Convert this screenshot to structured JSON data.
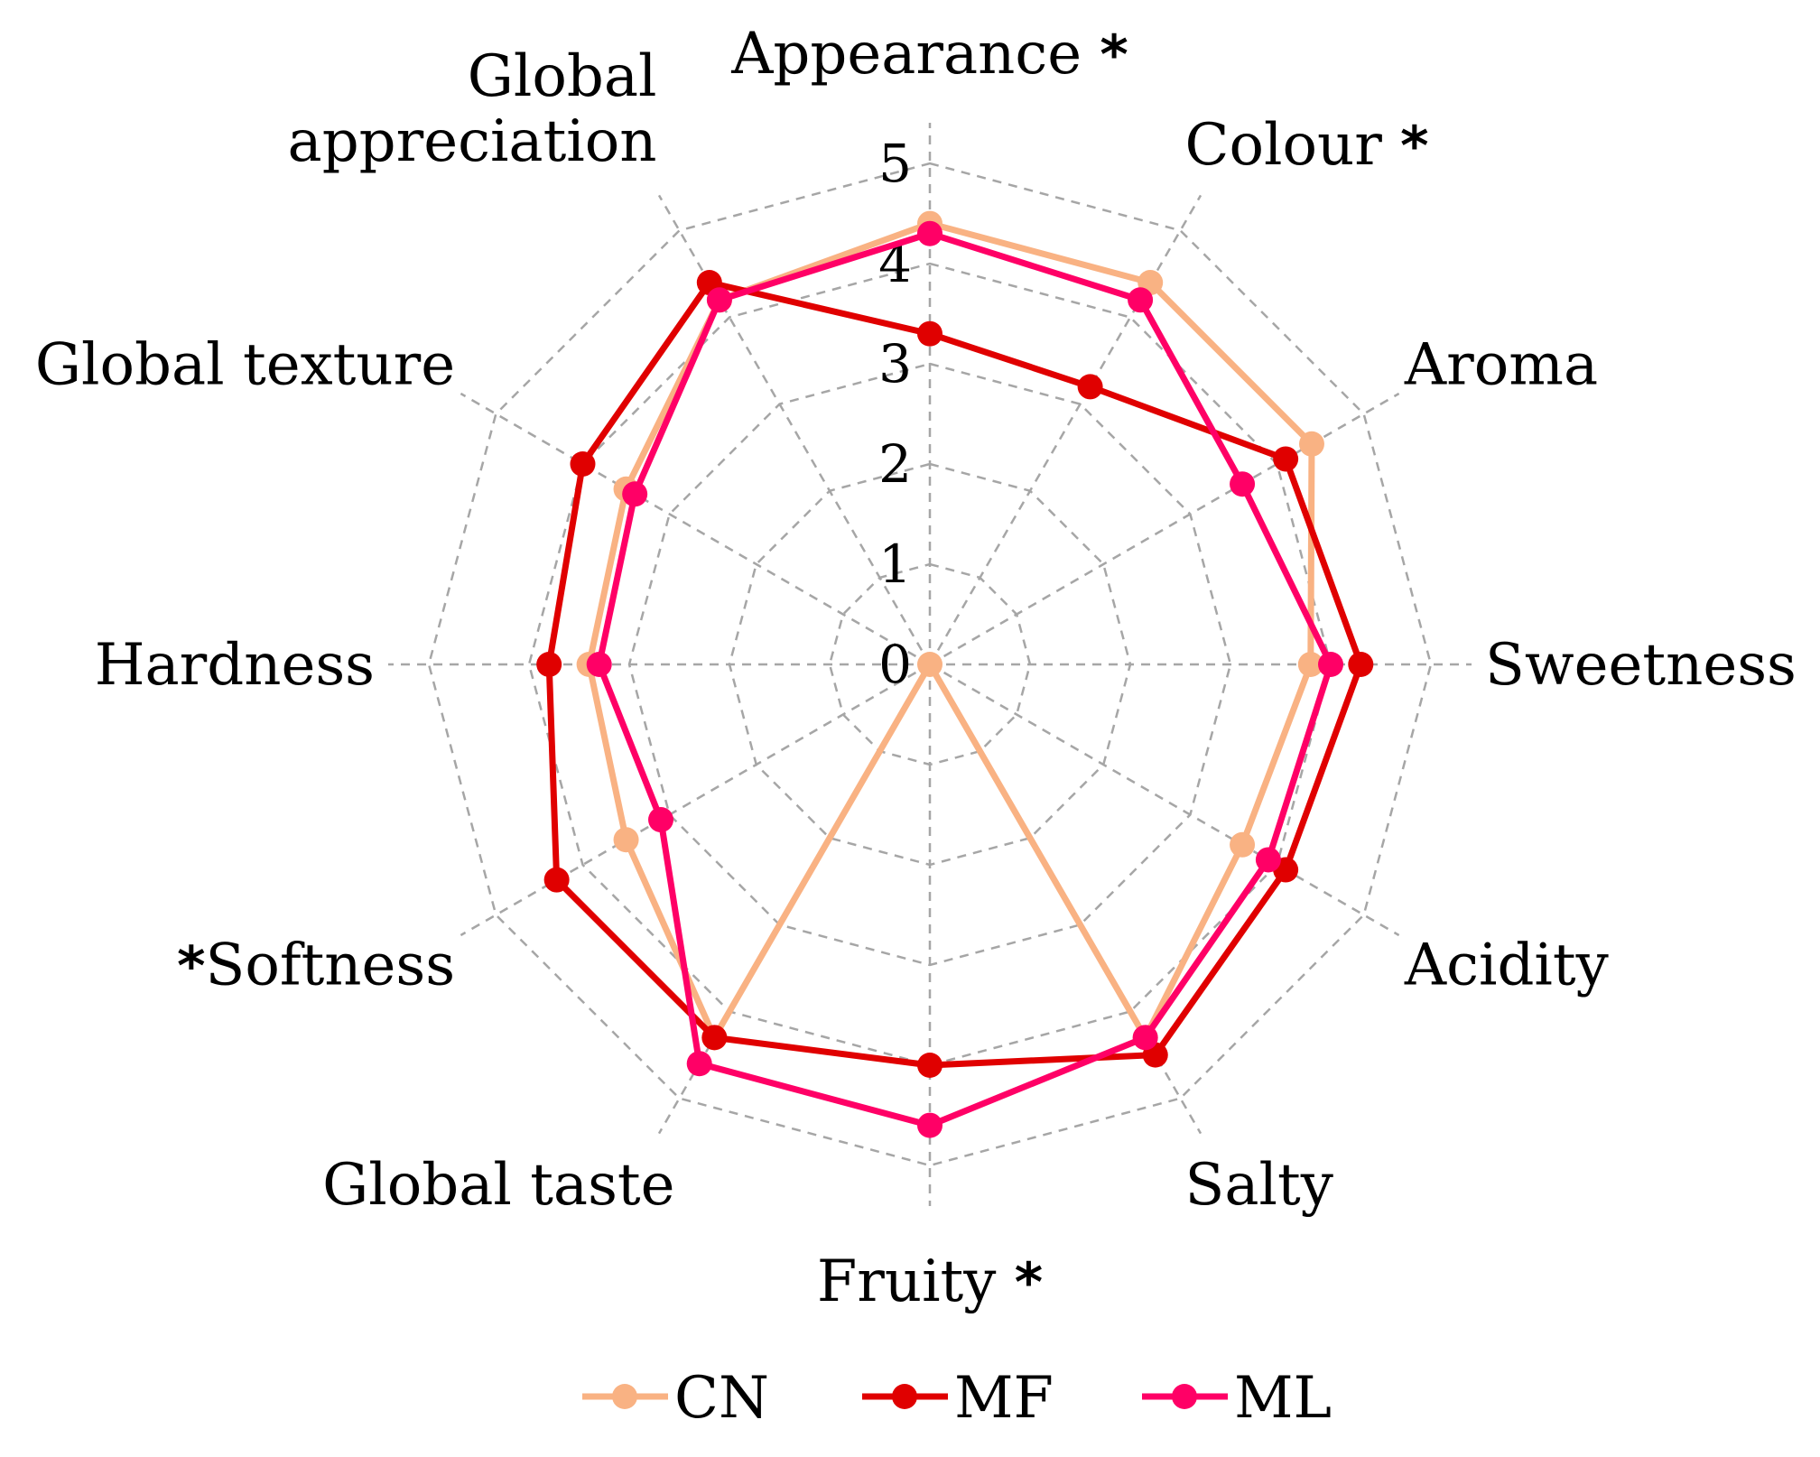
{
  "chart_data": {
    "type": "radar",
    "title": "",
    "axes": [
      {
        "label": "Appearance",
        "star": "*",
        "star_side": "after"
      },
      {
        "label": "Colour",
        "star": "*",
        "star_side": "after"
      },
      {
        "label": "Aroma",
        "star": "",
        "star_side": "after"
      },
      {
        "label": "Sweetness",
        "star": "",
        "star_side": "after"
      },
      {
        "label": "Acidity",
        "star": "",
        "star_side": "after"
      },
      {
        "label": "Salty",
        "star": "",
        "star_side": "after"
      },
      {
        "label": "Fruity",
        "star": "*",
        "star_side": "after"
      },
      {
        "label": "Global taste",
        "star": "",
        "star_side": "after"
      },
      {
        "label": "Softness",
        "star": "*",
        "star_side": "before"
      },
      {
        "label": "Hardness",
        "star": "",
        "star_side": "after"
      },
      {
        "label": "Global texture",
        "star": "",
        "star_side": "after"
      },
      {
        "label": [
          "Global",
          "appreciation"
        ],
        "star": "",
        "star_side": "after"
      }
    ],
    "ticks": [
      "0",
      "1",
      "2",
      "3",
      "4",
      "5"
    ],
    "rmax": 5,
    "grid": true,
    "legend_position": "bottom",
    "series": [
      {
        "name": "CN",
        "color": "#f9b283",
        "values": [
          4.4,
          4.4,
          4.4,
          3.8,
          3.6,
          4.3,
          0.0,
          4.3,
          3.5,
          3.4,
          3.5,
          4.2
        ]
      },
      {
        "name": "MF",
        "color": "#e00000",
        "values": [
          3.3,
          3.2,
          4.1,
          4.3,
          4.1,
          4.5,
          4.0,
          4.3,
          4.3,
          3.8,
          4.0,
          4.4
        ]
      },
      {
        "name": "ML",
        "color": "#ff0066",
        "values": [
          4.3,
          4.2,
          3.6,
          4.0,
          3.9,
          4.3,
          4.6,
          4.6,
          3.1,
          3.3,
          3.4,
          4.2
        ]
      }
    ]
  }
}
